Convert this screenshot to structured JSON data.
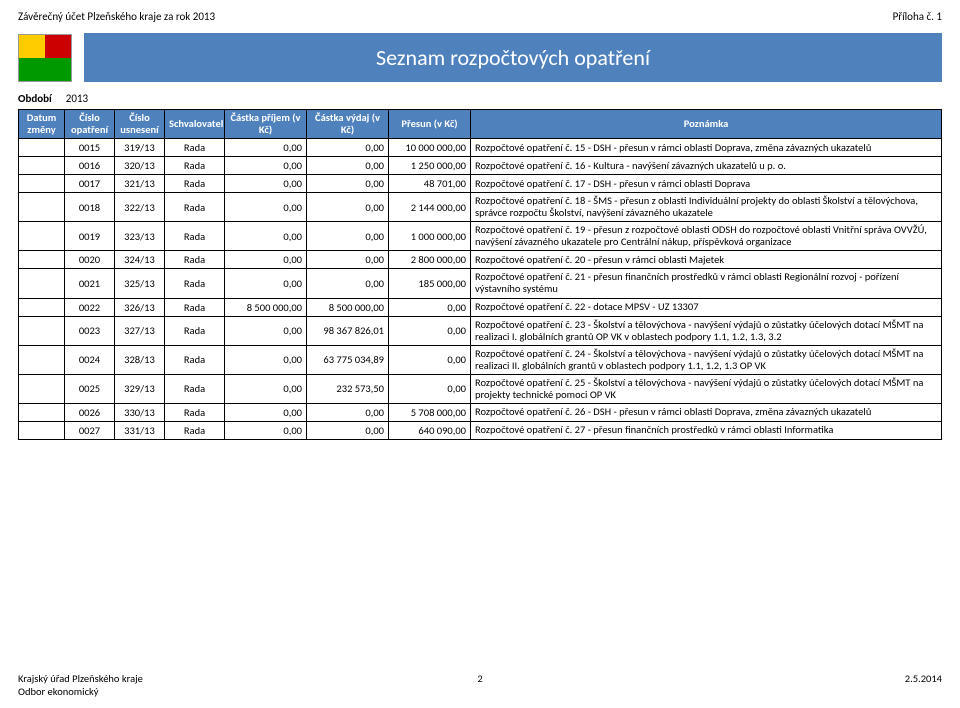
{
  "header": {
    "left": "Závěrečný účet Plzeňského kraje za rok 2013",
    "right": "Příloha č. 1"
  },
  "crest_colors": [
    "#ffcc00",
    "#cc0000",
    "#009900",
    "#009900"
  ],
  "title": "Seznam rozpočtových opatření",
  "meta": {
    "label": "Období",
    "value": "2013"
  },
  "columns": [
    "Datum změny",
    "Číslo opatření",
    "Číslo usnesení",
    "Schvalovatel",
    "Částka příjem (v Kč)",
    "Částka výdaj (v Kč)",
    "Přesun (v Kč)",
    "Poznámka"
  ],
  "col_widths": [
    "46px",
    "50px",
    "50px",
    "60px",
    "82px",
    "82px",
    "82px",
    "auto"
  ],
  "rows": [
    {
      "c": [
        "",
        "0015",
        "319/13",
        "Rada",
        "0,00",
        "0,00",
        "10 000 000,00"
      ],
      "note": "Rozpočtové opatření č. 15 - DSH - přesun v rámci oblasti Doprava, změna závazných ukazatelů"
    },
    {
      "c": [
        "",
        "0016",
        "320/13",
        "Rada",
        "0,00",
        "0,00",
        "1 250 000,00"
      ],
      "note": "Rozpočtové opatření č. 16 - Kultura - navýšení závazných ukazatelů u p. o."
    },
    {
      "c": [
        "",
        "0017",
        "321/13",
        "Rada",
        "0,00",
        "0,00",
        "48 701,00"
      ],
      "note": "Rozpočtové opatření č. 17 - DSH - přesun v rámci oblasti Doprava"
    },
    {
      "c": [
        "",
        "0018",
        "322/13",
        "Rada",
        "0,00",
        "0,00",
        "2 144 000,00"
      ],
      "note": "Rozpočtové opatření č. 18 - ŠMS - přesun z oblasti Individuální projekty do oblasti Školství a tělovýchova, správce rozpočtu Školství, navýšení závazného ukazatele"
    },
    {
      "c": [
        "",
        "0019",
        "323/13",
        "Rada",
        "0,00",
        "0,00",
        "1 000 000,00"
      ],
      "note": "Rozpočtové opatření č. 19 - přesun z rozpočtové oblasti ODSH do rozpočtové oblasti Vnitřní správa OVVŽÚ, navýšení závazného ukazatele pro Centrální nákup, příspěvková organizace"
    },
    {
      "c": [
        "",
        "0020",
        "324/13",
        "Rada",
        "0,00",
        "0,00",
        "2 800 000,00"
      ],
      "note": "Rozpočtové opatření č. 20 - přesun v rámci oblasti Majetek"
    },
    {
      "c": [
        "",
        "0021",
        "325/13",
        "Rada",
        "0,00",
        "0,00",
        "185 000,00"
      ],
      "note": "Rozpočtové opatření č. 21 - přesun finančních prostředků v rámci oblasti Regionální rozvoj - pořízení výstavního systému"
    },
    {
      "c": [
        "",
        "0022",
        "326/13",
        "Rada",
        "8 500 000,00",
        "8 500 000,00",
        "0,00"
      ],
      "note": "Rozpočtové opatření č. 22 - dotace MPSV - UZ 13307"
    },
    {
      "c": [
        "",
        "0023",
        "327/13",
        "Rada",
        "0,00",
        "98 367 826,01",
        "0,00"
      ],
      "note": "Rozpočtové opatření č. 23 - Školství a tělovýchova - navýšení výdajů o zůstatky účelových dotací MŠMT na realizaci I. globálních grantů OP VK v oblastech podpory 1.1, 1.2, 1.3, 3.2"
    },
    {
      "c": [
        "",
        "0024",
        "328/13",
        "Rada",
        "0,00",
        "63 775 034,89",
        "0,00"
      ],
      "note": "Rozpočtové opatření č. 24 - Školství a tělovýchova - navýšení výdajů o zůstatky účelových dotací MŠMT na realizaci II. globálních grantů v oblastech podpory 1.1, 1.2, 1.3 OP VK"
    },
    {
      "c": [
        "",
        "0025",
        "329/13",
        "Rada",
        "0,00",
        "232 573,50",
        "0,00"
      ],
      "note": "Rozpočtové opatření č. 25 - Školství a tělovýchova - navýšení výdajů o zůstatky účelových dotací MŠMT na projekty technické pomoci OP VK"
    },
    {
      "c": [
        "",
        "0026",
        "330/13",
        "Rada",
        "0,00",
        "0,00",
        "5 708 000,00"
      ],
      "note": "Rozpočtové opatření č. 26 - DSH - přesun v rámci oblasti Doprava, změna závazných ukazatelů"
    },
    {
      "c": [
        "",
        "0027",
        "331/13",
        "Rada",
        "0,00",
        "0,00",
        "640 090,00"
      ],
      "note": "Rozpočtové opatření č. 27 - přesun finančních prostředků v rámci oblasti Informatika"
    }
  ],
  "footer": {
    "left1": "Krajský úřad Plzeňského kraje",
    "left2": "Odbor ekonomický",
    "page": "2",
    "date": "2.5.2014"
  }
}
